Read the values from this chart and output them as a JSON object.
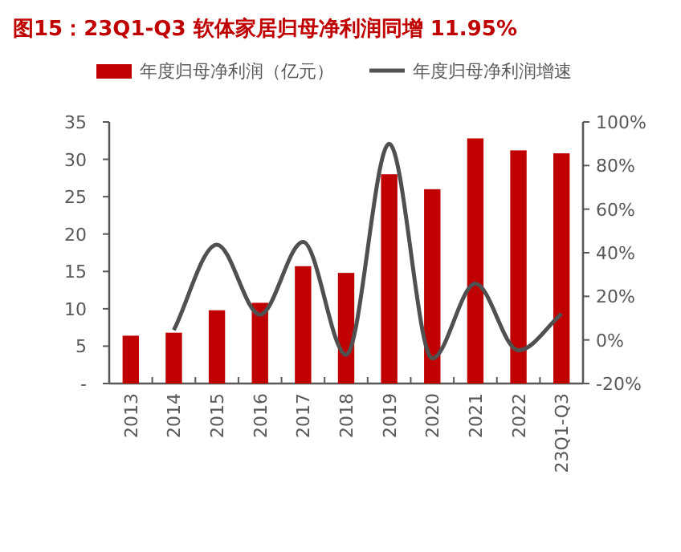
{
  "chart_data": {
    "type": "bar",
    "title": "图15：23Q1-Q3 软体家居归母净利润同增 11.95%",
    "categories": [
      "2013",
      "2014",
      "2015",
      "2016",
      "2017",
      "2018",
      "2019",
      "2020",
      "2021",
      "2022",
      "23Q1-Q3"
    ],
    "series": [
      {
        "name": "年度归母净利润（亿元）",
        "color": "#c00000",
        "values": [
          6.4,
          6.8,
          9.8,
          10.8,
          15.7,
          14.8,
          28.0,
          26.0,
          32.8,
          31.2,
          30.8
        ]
      },
      {
        "name": "年度归母净利润增速",
        "type": "line",
        "axis": "y2",
        "color": "#505050",
        "values": [
          null,
          4.5,
          43.7,
          11.6,
          45,
          -6.8,
          90,
          -8.5,
          25.8,
          -4.8,
          12
        ]
      }
    ],
    "ylim": [
      0,
      35
    ],
    "yticks": [
      {
        "value": 0,
        "label": "-"
      },
      5,
      10,
      15,
      20,
      25,
      30,
      35
    ],
    "y2lim": [
      -20,
      100
    ],
    "y2ticks": [
      {
        "value": -20,
        "label": "-20%"
      },
      {
        "value": 0,
        "label": "0%"
      },
      {
        "value": 20,
        "label": "20%"
      },
      {
        "value": 40,
        "label": "40%"
      },
      {
        "value": 60,
        "label": "60%"
      },
      {
        "value": 80,
        "label": "80%"
      },
      {
        "value": 100,
        "label": "100%"
      }
    ],
    "legend": "top",
    "grid": false,
    "marker": "none"
  }
}
